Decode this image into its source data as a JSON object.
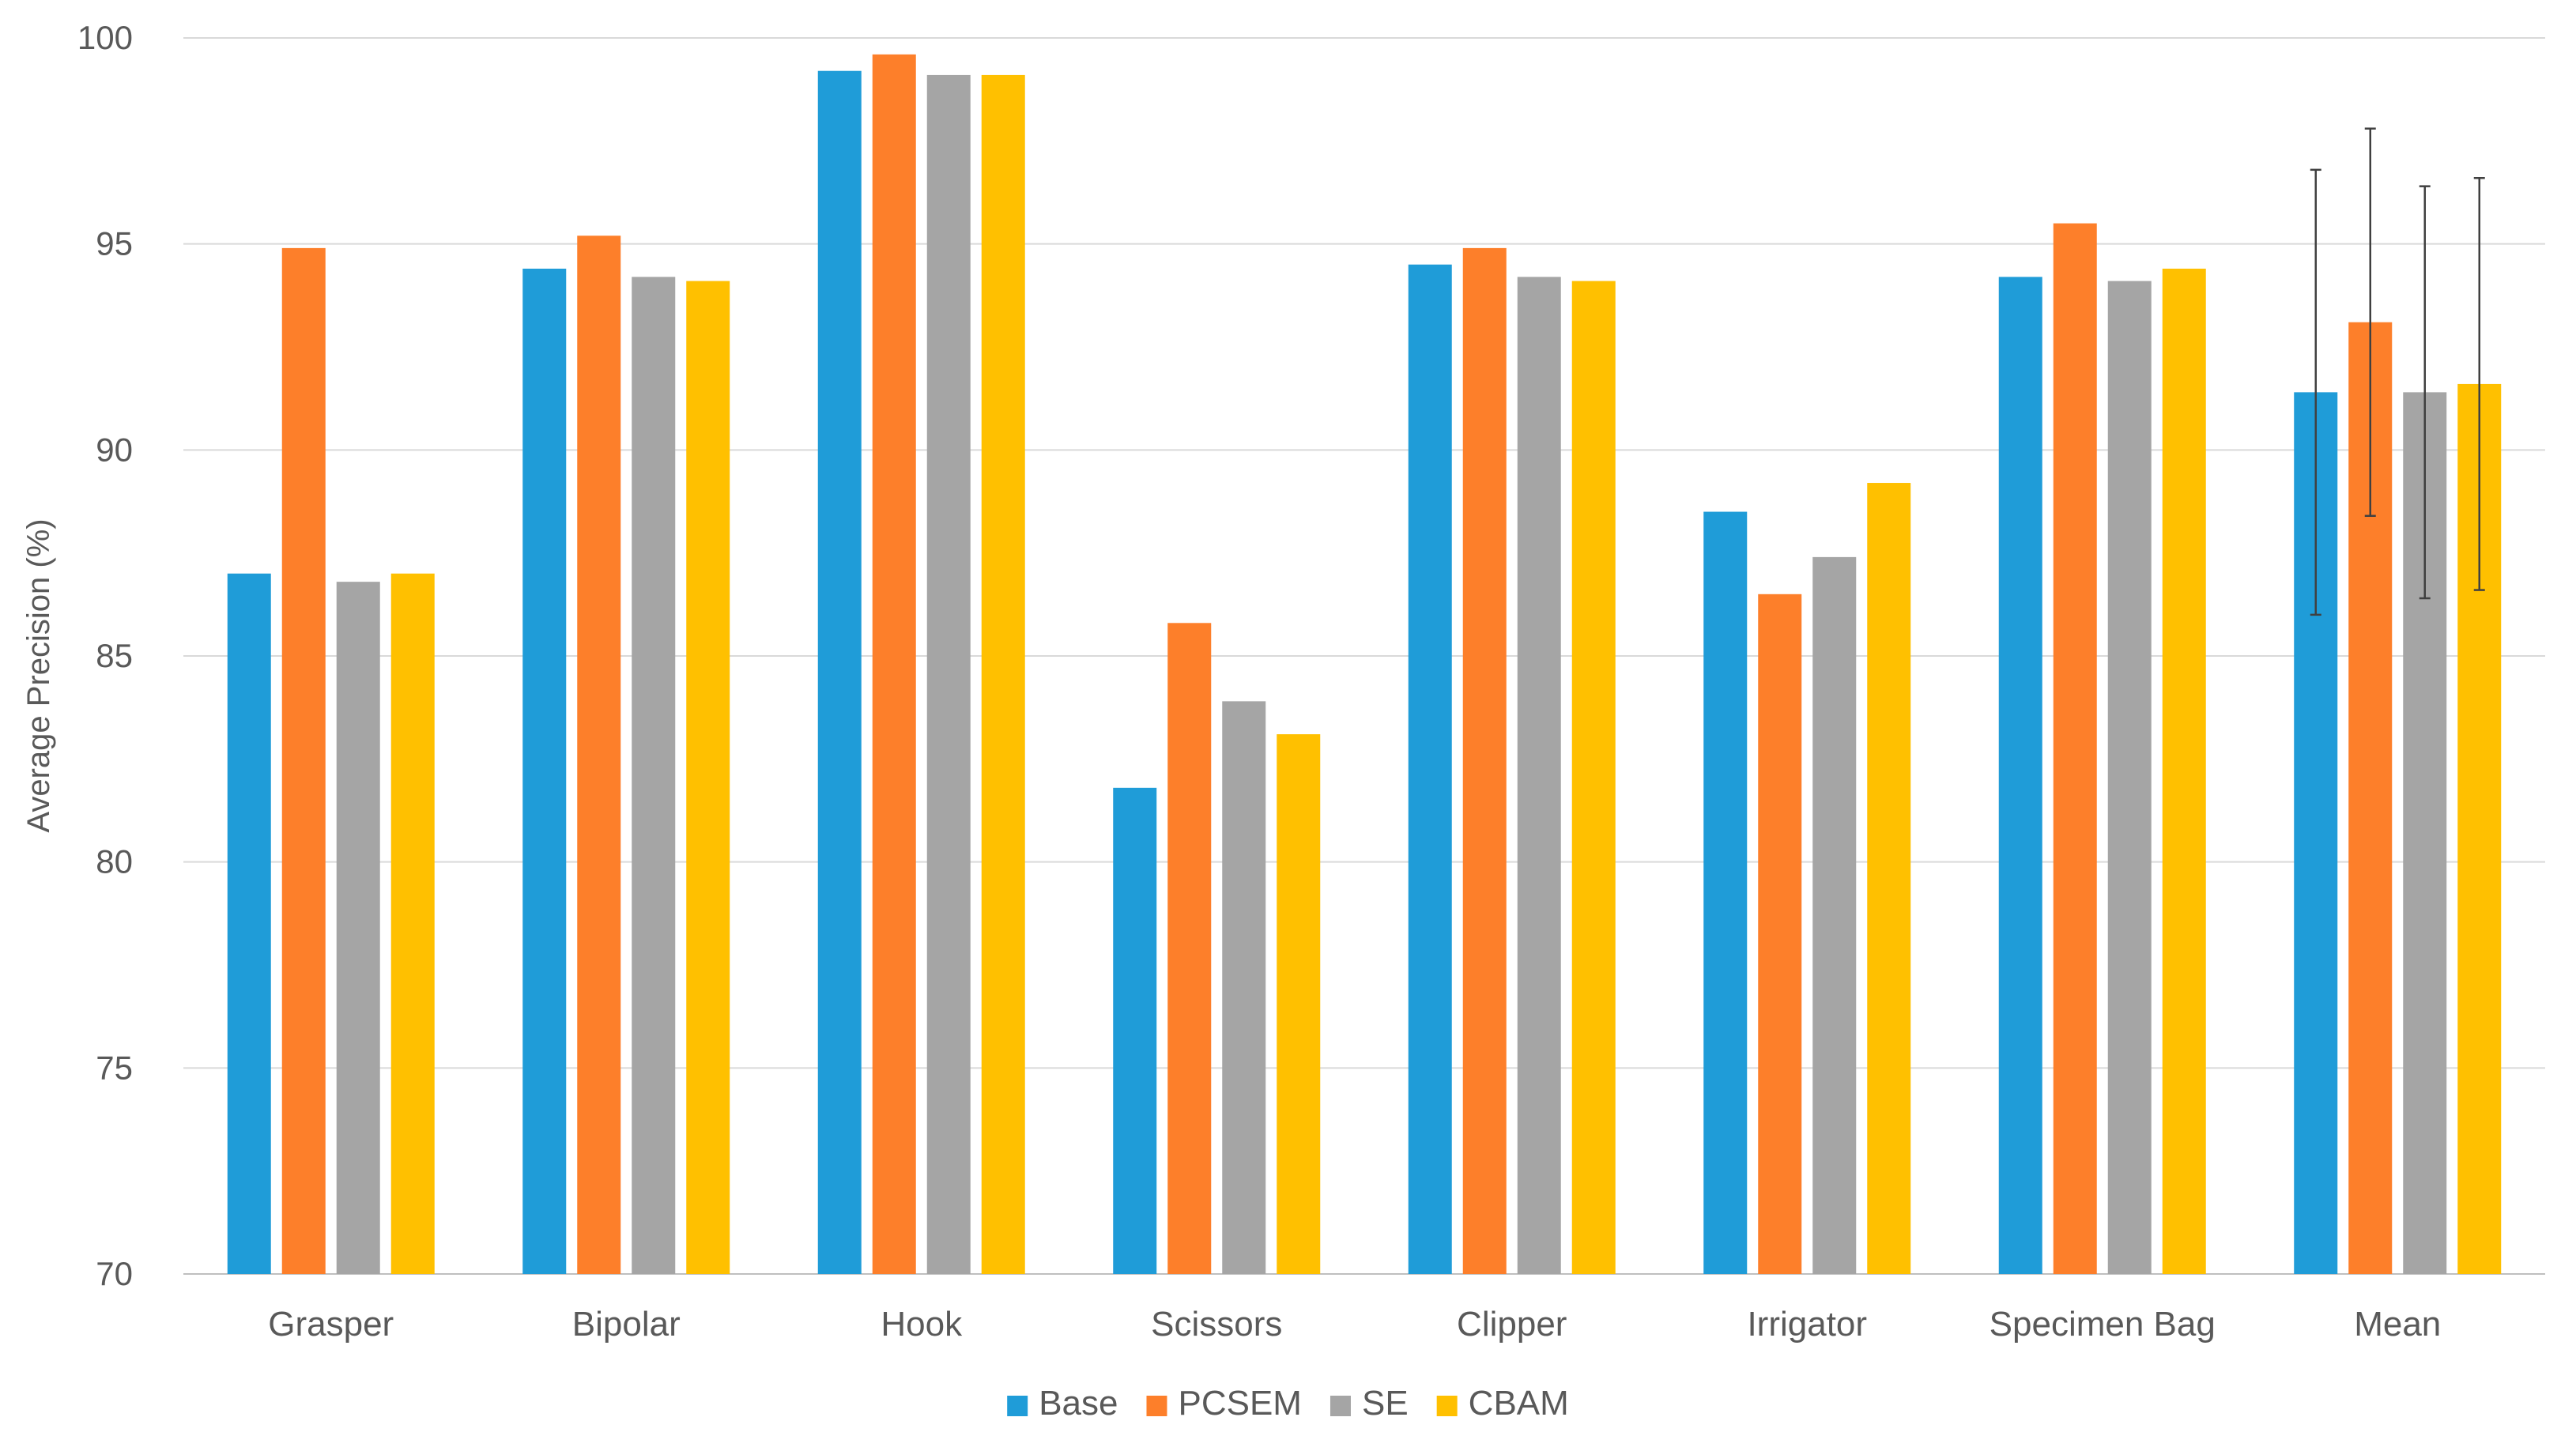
{
  "chart_data": {
    "type": "bar",
    "title": "",
    "xlabel": "",
    "ylabel": "Average Precision (%)",
    "ylim": [
      70,
      100
    ],
    "yticks": [
      70,
      75,
      80,
      85,
      90,
      95,
      100
    ],
    "grid": true,
    "legend_position": "bottom",
    "categories": [
      "Grasper",
      "Bipolar",
      "Hook",
      "Scissors",
      "Clipper",
      "Irrigator",
      "Specimen Bag",
      "Mean"
    ],
    "series": [
      {
        "name": "Base",
        "color": "#1f9cd8",
        "values": [
          87.0,
          94.4,
          99.2,
          81.8,
          94.5,
          88.5,
          94.2,
          91.4
        ],
        "error": [
          0,
          0,
          0,
          0,
          0,
          0,
          0,
          5.4
        ]
      },
      {
        "name": "PCSEM",
        "color": "#fd7f2a",
        "values": [
          94.9,
          95.2,
          99.6,
          85.8,
          94.9,
          86.5,
          95.5,
          93.1
        ],
        "error": [
          0,
          0,
          0,
          0,
          0,
          0,
          0,
          4.7
        ]
      },
      {
        "name": "SE",
        "color": "#a5a5a5",
        "values": [
          86.8,
          94.2,
          99.1,
          83.9,
          94.2,
          87.4,
          94.1,
          91.4
        ],
        "error": [
          0,
          0,
          0,
          0,
          0,
          0,
          0,
          5.0
        ]
      },
      {
        "name": "CBAM",
        "color": "#ffc000",
        "values": [
          87.0,
          94.1,
          99.1,
          83.1,
          94.1,
          89.2,
          94.4,
          91.6
        ],
        "error": [
          0,
          0,
          0,
          0,
          0,
          0,
          0,
          5.0
        ]
      }
    ]
  }
}
